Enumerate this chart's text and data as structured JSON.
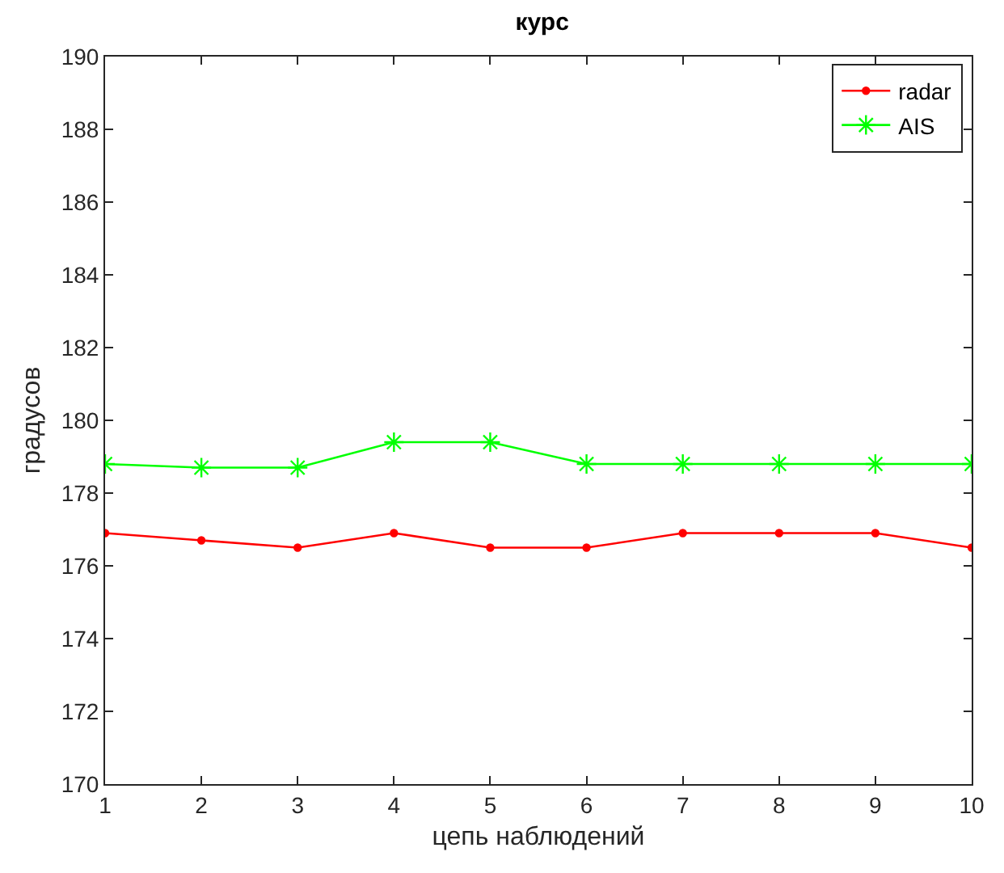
{
  "chart_data": {
    "type": "line",
    "title": "курс",
    "xlabel": "цепь наблюдений",
    "ylabel": "градусов",
    "x": [
      1,
      2,
      3,
      4,
      5,
      6,
      7,
      8,
      9,
      10
    ],
    "series": [
      {
        "name": "radar",
        "color": "#ff0000",
        "marker": "circle",
        "values": [
          176.9,
          176.7,
          176.5,
          176.9,
          176.5,
          176.5,
          176.9,
          176.9,
          176.9,
          176.5
        ]
      },
      {
        "name": "AIS",
        "color": "#00ff00",
        "marker": "cross",
        "values": [
          178.8,
          178.7,
          178.7,
          179.4,
          179.4,
          178.8,
          178.8,
          178.8,
          178.8,
          178.8
        ]
      }
    ],
    "xlim": [
      1,
      10
    ],
    "xticks": [
      1,
      2,
      3,
      4,
      5,
      6,
      7,
      8,
      9,
      10
    ],
    "ylim": [
      170,
      190
    ],
    "yticks": [
      170,
      172,
      174,
      176,
      178,
      180,
      182,
      184,
      186,
      188,
      190
    ],
    "legend": "top right",
    "line_style": "solid"
  }
}
